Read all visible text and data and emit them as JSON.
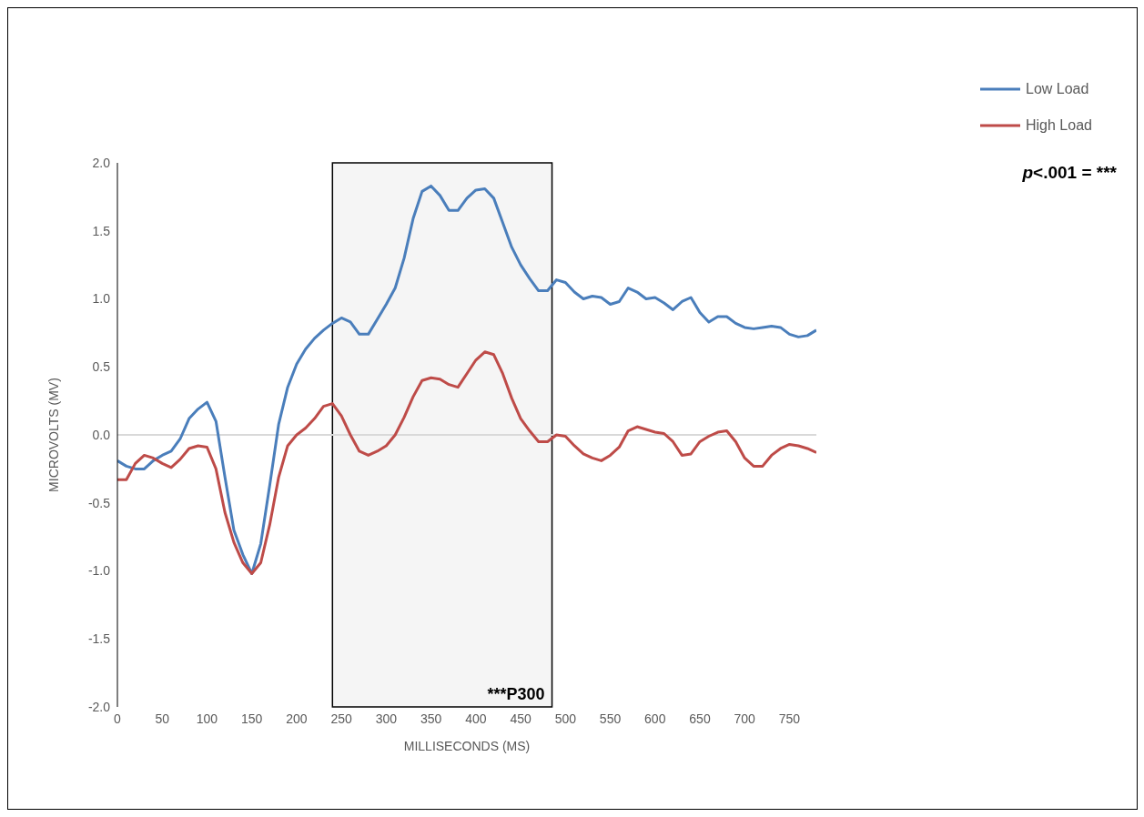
{
  "chart_data": {
    "type": "line",
    "xlabel": "MILLISECONDS (MS)",
    "ylabel": "MICROVOLTS (MV)",
    "x": [
      0,
      10,
      20,
      30,
      40,
      50,
      60,
      70,
      80,
      90,
      100,
      110,
      120,
      130,
      140,
      150,
      160,
      170,
      180,
      190,
      200,
      210,
      220,
      230,
      240,
      250,
      260,
      270,
      280,
      290,
      300,
      310,
      320,
      330,
      340,
      350,
      360,
      370,
      380,
      390,
      400,
      410,
      420,
      430,
      440,
      450,
      460,
      470,
      480,
      490,
      500,
      510,
      520,
      530,
      540,
      550,
      560,
      570,
      580,
      590,
      600,
      610,
      620,
      630,
      640,
      650,
      660,
      670,
      680,
      690,
      700,
      710,
      720,
      730,
      740,
      750,
      760,
      770,
      780
    ],
    "series": [
      {
        "name": "Low Load",
        "color": "#4a7ebb",
        "values": [
          -0.19,
          -0.23,
          -0.25,
          -0.25,
          -0.19,
          -0.15,
          -0.12,
          -0.03,
          0.12,
          0.19,
          0.24,
          0.1,
          -0.31,
          -0.7,
          -0.88,
          -1.02,
          -0.8,
          -0.37,
          0.08,
          0.35,
          0.52,
          0.63,
          0.71,
          0.77,
          0.82,
          0.86,
          0.83,
          0.74,
          0.74,
          0.85,
          0.96,
          1.08,
          1.3,
          1.59,
          1.79,
          1.83,
          1.76,
          1.65,
          1.65,
          1.74,
          1.8,
          1.81,
          1.74,
          1.56,
          1.38,
          1.25,
          1.15,
          1.06,
          1.06,
          1.14,
          1.12,
          1.05,
          1.0,
          1.02,
          1.01,
          0.96,
          0.98,
          1.08,
          1.05,
          1.0,
          1.01,
          0.97,
          0.92,
          0.98,
          1.01,
          0.9,
          0.83,
          0.87,
          0.87,
          0.82,
          0.79,
          0.78,
          0.79,
          0.8,
          0.79,
          0.74,
          0.72,
          0.73,
          0.77
        ]
      },
      {
        "name": "High Load",
        "color": "#be4b48",
        "values": [
          -0.33,
          -0.33,
          -0.21,
          -0.15,
          -0.17,
          -0.21,
          -0.24,
          -0.18,
          -0.1,
          -0.08,
          -0.09,
          -0.25,
          -0.57,
          -0.79,
          -0.94,
          -1.02,
          -0.94,
          -0.66,
          -0.31,
          -0.08,
          0.0,
          0.05,
          0.12,
          0.21,
          0.23,
          0.14,
          0.0,
          -0.12,
          -0.15,
          -0.12,
          -0.08,
          0.0,
          0.13,
          0.28,
          0.4,
          0.42,
          0.41,
          0.37,
          0.35,
          0.45,
          0.55,
          0.61,
          0.59,
          0.45,
          0.27,
          0.12,
          0.03,
          -0.05,
          -0.05,
          0.0,
          -0.01,
          -0.08,
          -0.14,
          -0.17,
          -0.19,
          -0.15,
          -0.09,
          0.03,
          0.06,
          0.04,
          0.02,
          0.01,
          -0.05,
          -0.15,
          -0.14,
          -0.05,
          -0.01,
          0.02,
          0.03,
          -0.05,
          -0.17,
          -0.23,
          -0.23,
          -0.15,
          -0.1,
          -0.07,
          -0.08,
          -0.1,
          -0.13
        ]
      }
    ],
    "xlim": [
      0,
      780
    ],
    "xticks": [
      0,
      50,
      100,
      150,
      200,
      250,
      300,
      350,
      400,
      450,
      500,
      550,
      600,
      650,
      700,
      750
    ],
    "ylim": [
      -2.0,
      2.0
    ],
    "yticks": [
      {
        "value": -2,
        "label": "-2.0"
      },
      {
        "value": -1.5,
        "label": "-1.5"
      },
      {
        "value": -1,
        "label": "-1.0"
      },
      {
        "value": -0.5,
        "label": "-0.5"
      },
      {
        "value": 0,
        "label": "0.0"
      },
      {
        "value": 0.5,
        "label": "0.5"
      },
      {
        "value": 1,
        "label": "1.0"
      },
      {
        "value": 1.5,
        "label": "1.5"
      },
      {
        "value": 2,
        "label": "2.0"
      }
    ],
    "ref_lines": [
      {
        "axis": "y",
        "value": 0,
        "color": "#d9d9d9"
      }
    ],
    "bands": [
      {
        "axis": "x",
        "from": 240,
        "to": 485,
        "label": "***P300",
        "color": "#000000"
      }
    ],
    "annotations": [
      "p<.001 = ***"
    ],
    "grid": false,
    "legend": "top right",
    "marker": "none",
    "line_style": "solid"
  }
}
